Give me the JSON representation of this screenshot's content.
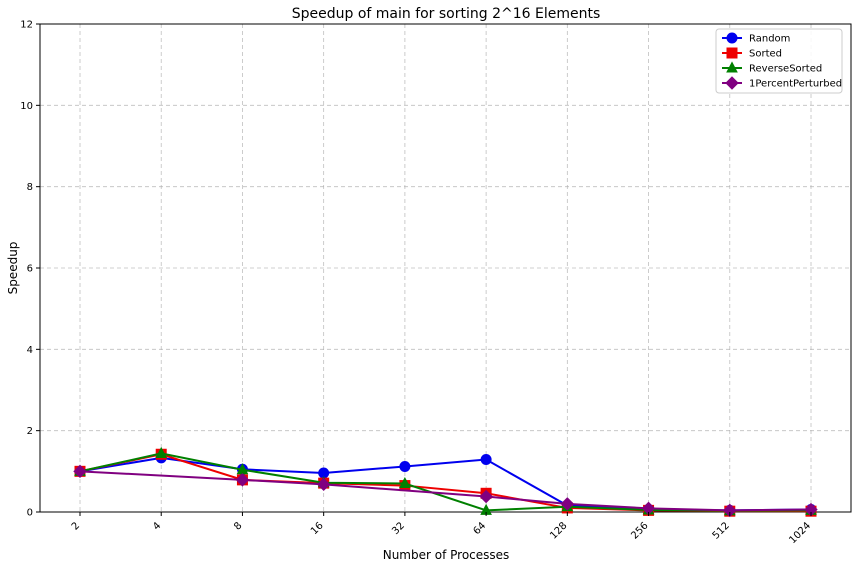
{
  "chart_data": {
    "type": "line",
    "title": "Speedup of main for sorting 2^16 Elements",
    "xlabel": "Number of Processes",
    "ylabel": "Speedup",
    "categories": [
      "2",
      "4",
      "8",
      "16",
      "32",
      "64",
      "128",
      "256",
      "512",
      "1024"
    ],
    "ylim": [
      0,
      12
    ],
    "yticks": [
      0,
      2,
      4,
      6,
      8,
      10,
      12
    ],
    "grid": true,
    "legend_position": "top-right",
    "series": [
      {
        "name": "Random",
        "color": "#0000ee",
        "marker": "circle",
        "values": [
          1.0,
          1.33,
          1.05,
          0.96,
          1.12,
          1.29,
          0.16,
          0.06,
          0.04,
          0.06
        ]
      },
      {
        "name": "Sorted",
        "color": "#ee0000",
        "marker": "square",
        "values": [
          1.0,
          1.42,
          0.79,
          0.71,
          0.65,
          0.46,
          0.1,
          0.04,
          0.02,
          0.02
        ]
      },
      {
        "name": "ReverseSorted",
        "color": "#008000",
        "marker": "triangle",
        "values": [
          1.0,
          1.44,
          1.04,
          0.72,
          0.7,
          0.04,
          0.13,
          0.05,
          0.03,
          0.04
        ]
      },
      {
        "name": "1PercentPerturbed",
        "color": "#800080",
        "marker": "diamond",
        "values": [
          1.0,
          null,
          0.79,
          0.68,
          null,
          0.38,
          0.2,
          0.09,
          0.04,
          0.06
        ]
      }
    ]
  }
}
